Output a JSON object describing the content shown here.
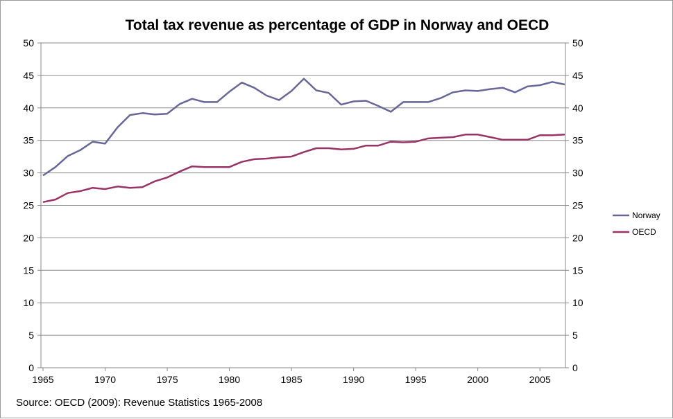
{
  "chart_data": {
    "type": "line",
    "title": "Total tax revenue as percentage of GDP in Norway and OECD",
    "source": "Source: OECD (2009): Revenue Statistics 1965-2008",
    "x": [
      1965,
      1966,
      1967,
      1968,
      1969,
      1970,
      1971,
      1972,
      1973,
      1974,
      1975,
      1976,
      1977,
      1978,
      1979,
      1980,
      1981,
      1982,
      1983,
      1984,
      1985,
      1986,
      1987,
      1988,
      1989,
      1990,
      1991,
      1992,
      1993,
      1994,
      1995,
      1996,
      1997,
      1998,
      1999,
      2000,
      2001,
      2002,
      2003,
      2004,
      2005,
      2006,
      2007
    ],
    "x_ticks": [
      "1965",
      "1970",
      "1975",
      "1980",
      "1985",
      "1990",
      "1995",
      "2000",
      "2005"
    ],
    "y_ticks": [
      "0",
      "5",
      "10",
      "15",
      "20",
      "25",
      "30",
      "35",
      "40",
      "45",
      "50"
    ],
    "ylim": [
      0,
      50
    ],
    "grid": true,
    "legend": "right",
    "series": [
      {
        "name": "Norway",
        "color": "#666699",
        "values": [
          29.6,
          30.9,
          32.6,
          33.5,
          34.8,
          34.5,
          37.0,
          38.9,
          39.2,
          39.0,
          39.1,
          40.6,
          41.4,
          40.9,
          40.9,
          42.5,
          43.9,
          43.1,
          41.9,
          41.2,
          42.6,
          44.5,
          42.7,
          42.3,
          40.5,
          41.0,
          41.1,
          40.3,
          39.4,
          40.9,
          40.9,
          40.9,
          41.5,
          42.4,
          42.7,
          42.6,
          42.9,
          43.1,
          42.4,
          43.3,
          43.5,
          44.0,
          43.6
        ]
      },
      {
        "name": "OECD",
        "color": "#993366",
        "values": [
          25.5,
          25.9,
          26.9,
          27.2,
          27.7,
          27.5,
          27.9,
          27.7,
          27.8,
          28.7,
          29.3,
          30.2,
          31.0,
          30.9,
          30.9,
          30.9,
          31.7,
          32.1,
          32.2,
          32.4,
          32.5,
          33.2,
          33.8,
          33.8,
          33.6,
          33.7,
          34.2,
          34.2,
          34.8,
          34.7,
          34.8,
          35.3,
          35.4,
          35.5,
          35.9,
          35.9,
          35.5,
          35.1,
          35.1,
          35.1,
          35.8,
          35.8,
          35.9
        ]
      }
    ]
  }
}
